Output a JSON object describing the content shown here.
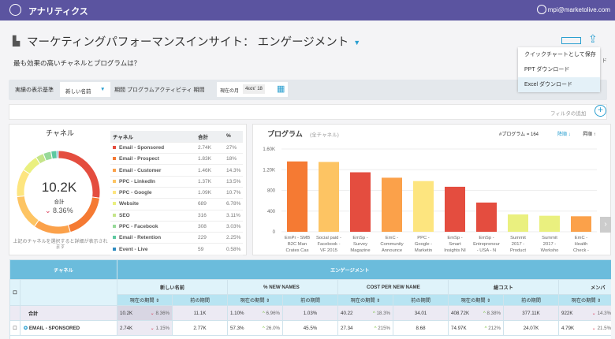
{
  "header": {
    "app_title": "アナリティクス",
    "user_email": "mpi@marketolive.com"
  },
  "page": {
    "title": "マーケティングパフォーマンスインサイト： エンゲージメント",
    "subtitle": "最も効果の高いチャネルとプログラムは？",
    "hidden_suffix": "ド"
  },
  "export_menu": {
    "items": [
      "クイックチャートとして保存",
      "PPT ダウンロード",
      "Excel ダウンロード"
    ],
    "highlighted": 2
  },
  "toolbar": {
    "show_by_label": "実績の表示基準",
    "show_by_value": "新しい名前",
    "period_label": "期間 プログラムアクティビティ 期間",
    "period_value": "現在の月",
    "period_date": "4εσε' 18"
  },
  "filter": {
    "add_filter": "フィルタの追加"
  },
  "channel_panel": {
    "title": "チャネル",
    "total": "10.2K",
    "total_label": "合計",
    "change": "8.36%",
    "change_dir": "down",
    "hint": "上記のチャネルを選択すると詳細が表示されます",
    "columns": [
      "チャネル",
      "合計",
      "%"
    ],
    "rows": [
      {
        "name": "Email - Sponsored",
        "total": "2.74K",
        "pct": "27%",
        "value": 27,
        "color": "#e44d3f"
      },
      {
        "name": "Email - Prospect",
        "total": "1.83K",
        "pct": "18%",
        "value": 18,
        "color": "#f57a33"
      },
      {
        "name": "Email - Customer",
        "total": "1.46K",
        "pct": "14.3%",
        "value": 14.3,
        "color": "#fba14a"
      },
      {
        "name": "PPC - LinkedIn",
        "total": "1.37K",
        "pct": "13.5%",
        "value": 13.5,
        "color": "#fdc463"
      },
      {
        "name": "PPC - Google",
        "total": "1.09K",
        "pct": "10.7%",
        "value": 10.7,
        "color": "#fde57f"
      },
      {
        "name": "Website",
        "total": "689",
        "pct": "6.78%",
        "value": 6.78,
        "color": "#eaf07f"
      },
      {
        "name": "SEO",
        "total": "316",
        "pct": "3.11%",
        "value": 3.11,
        "color": "#c5e58a"
      },
      {
        "name": "PPC - Facebook",
        "total": "308",
        "pct": "3.03%",
        "value": 3.03,
        "color": "#97d998"
      },
      {
        "name": "Email - Retention",
        "total": "229",
        "pct": "2.25%",
        "value": 2.25,
        "color": "#5dc8a0"
      },
      {
        "name": "Event - Live",
        "total": "59",
        "pct": "0.58%",
        "value": 0.58,
        "color": "#2e8bc0"
      }
    ]
  },
  "program_panel": {
    "title": "プログラム",
    "subtitle": "(全チャネル)",
    "count": "#プログラム = 164",
    "sort_desc": "降順",
    "sort_asc": "昇順"
  },
  "chart_data": {
    "type": "bar",
    "ylim": [
      0,
      1600
    ],
    "yticks": [
      "0",
      "400",
      "800",
      "1.20K",
      "1.60K"
    ],
    "ytick_values": [
      0,
      400,
      800,
      1200,
      1600
    ],
    "grid": true,
    "categories": [
      "EmPr - SMB B2C Man Crates Cas",
      "Social paid - Facebook - VF 2015",
      "EmSp - Survey Magazine",
      "EmC - Community Announce",
      "PPC - Google - Marketin",
      "EmSp - Smart Insights NI",
      "EmSp - Entrepreneur - USA - N",
      "Summit 2017 - Product",
      "Summit 2017 - Worksho",
      "EmC - Health Check -"
    ],
    "labels": [
      [
        "EmPr - SMB",
        "B2C Man",
        "Crates Cas"
      ],
      [
        "Social paid -",
        "Facebook -",
        "VF 2015"
      ],
      [
        "EmSp -",
        "Survey",
        "Magazine"
      ],
      [
        "EmC -",
        "Community",
        "Announce"
      ],
      [
        "PPC -",
        "Google -",
        "Marketin"
      ],
      [
        "EmSp -",
        "Smart",
        "Insights NI"
      ],
      [
        "EmSp -",
        "Entrepreneur",
        "- USA - N"
      ],
      [
        "Summit",
        "2017 -",
        "Product"
      ],
      [
        "Summit",
        "2017 -",
        "Worksho"
      ],
      [
        "EmC -",
        "Health",
        "Check -"
      ]
    ],
    "values": [
      1360,
      1350,
      1150,
      1045,
      980,
      870,
      565,
      335,
      310,
      300
    ],
    "colors": [
      "#f57a33",
      "#fdc463",
      "#e44d3f",
      "#fba14a",
      "#fde57f",
      "#e44d3f",
      "#e44d3f",
      "#eaf07f",
      "#eaf07f",
      "#fba14a"
    ]
  },
  "table": {
    "channel_header": "チャネル",
    "group_header": "エンゲージメント",
    "metrics": [
      "新しい名前",
      "% NEW NAMES",
      "COST PER NEW NAME",
      "総コスト",
      "メンバ"
    ],
    "current": "現在の期間",
    "previous": "前の期間",
    "rows": [
      {
        "name": "合計",
        "cells": [
          [
            "10.2K",
            "8.36%",
            "down"
          ],
          [
            "11.1K"
          ],
          [
            "1.10%",
            "6.96%",
            "up"
          ],
          [
            "1.03%"
          ],
          [
            "40.22",
            "18.3%",
            "up"
          ],
          [
            "34.01"
          ],
          [
            "408.72K",
            "8.38%",
            "up"
          ],
          [
            "377.11K"
          ],
          [
            "922K",
            "14.3%",
            "down"
          ]
        ]
      },
      {
        "name": "EMAIL - SPONSORED",
        "cells": [
          [
            "2.74K",
            "1.15%",
            "down"
          ],
          [
            "2.77K"
          ],
          [
            "57.3%",
            "26.0%",
            "up"
          ],
          [
            "45.5%"
          ],
          [
            "27.34",
            "215%",
            "up"
          ],
          [
            "8.68"
          ],
          [
            "74.97K",
            "212%",
            "up"
          ],
          [
            "24.07K"
          ],
          [
            "4.79K",
            "21.5%",
            "down"
          ]
        ]
      }
    ]
  }
}
